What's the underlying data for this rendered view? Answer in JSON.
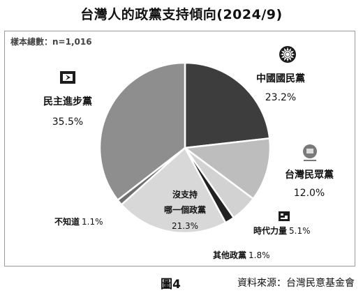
{
  "title": "台灣人的政黨支持傾向(2024/9)",
  "sample_note": "樣本總數：n=1,016",
  "figure_label": "圖4",
  "source": "資料來源：台灣民意基金會",
  "chart_data": {
    "type": "pie",
    "title": "台灣人的政黨支持傾向(2024/9)",
    "slices": [
      {
        "label": "中國國民黨",
        "value": 23.2,
        "value_text": "23.2%",
        "color": "#3d3d3d",
        "icon": "kmt-sun-emblem-icon"
      },
      {
        "label": "台灣民眾黨",
        "value": 12.0,
        "value_text": "12.0%",
        "color": "#bdbdbd",
        "icon": "tpp-emblem-icon"
      },
      {
        "label": "時代力量",
        "value": 5.1,
        "value_text": "5.1%",
        "color": "#d2d2d2",
        "icon": "npp-emblem-icon"
      },
      {
        "label": "其他政黨",
        "value": 1.8,
        "value_text": "1.8%",
        "color": "#222222"
      },
      {
        "label": "沒支持哪一個政黨",
        "label_lines": [
          "沒支持",
          "哪一個政黨"
        ],
        "value": 21.3,
        "value_text": "21.3%",
        "color": "#d8d8d8"
      },
      {
        "label": "不知道",
        "value": 1.1,
        "value_text": "1.1%",
        "color": "#6f6f6f"
      },
      {
        "label": "民主進步黨",
        "value": 35.5,
        "value_text": "35.5%",
        "color": "#8e8e8e",
        "icon": "dpp-emblem-icon"
      }
    ],
    "start_angle_deg": 0,
    "direction": "clockwise"
  }
}
